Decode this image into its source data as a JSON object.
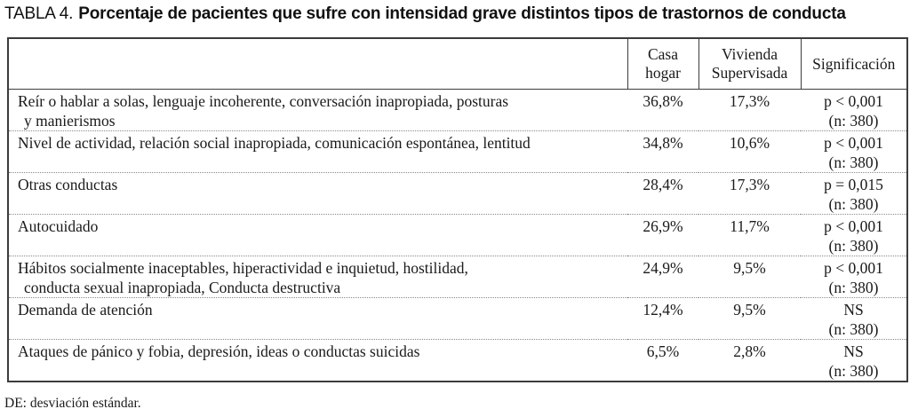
{
  "title": {
    "prefix": "TABLA 4.",
    "rest": "Porcentaje de pacientes que sufre con intensidad grave distintos tipos de trastornos de conducta"
  },
  "table": {
    "headers": {
      "label": "",
      "casa": "Casa hogar",
      "vivienda": "Vivienda Supervisada",
      "sig": "Significación"
    },
    "rows": [
      {
        "label1": "Reír o hablar a solas, lenguaje incoherente, conversación inapropiada, posturas",
        "label2": "y manierismos",
        "casa": "36,8%",
        "vivienda": "17,3%",
        "sig": "p < 0,001",
        "n": "(n: 380)"
      },
      {
        "label1": "Nivel de actividad, relación social inapropiada, comunicación espontánea, lentitud",
        "label2": "",
        "casa": "34,8%",
        "vivienda": "10,6%",
        "sig": "p < 0,001",
        "n": "(n: 380)"
      },
      {
        "label1": "Otras conductas",
        "label2": "",
        "casa": "28,4%",
        "vivienda": "17,3%",
        "sig": "p = 0,015",
        "n": "(n: 380)"
      },
      {
        "label1": "Autocuidado",
        "label2": "",
        "casa": "26,9%",
        "vivienda": "11,7%",
        "sig": "p < 0,001",
        "n": "(n: 380)"
      },
      {
        "label1": "Hábitos socialmente inaceptables, hiperactividad e inquietud, hostilidad,",
        "label2": "conducta sexual inapropiada, Conducta destructiva",
        "casa": "24,9%",
        "vivienda": "9,5%",
        "sig": "p < 0,001",
        "n": "(n: 380)"
      },
      {
        "label1": "Demanda de atención",
        "label2": "",
        "casa": "12,4%",
        "vivienda": "9,5%",
        "sig": "NS",
        "n": "(n: 380)"
      },
      {
        "label1": "Ataques de pánico y fobia, depresión, ideas o conductas suicidas",
        "label2": "",
        "casa": "6,5%",
        "vivienda": "2,8%",
        "sig": "NS",
        "n": "(n: 380)"
      }
    ]
  },
  "footnote": "DE: desviación estándar."
}
